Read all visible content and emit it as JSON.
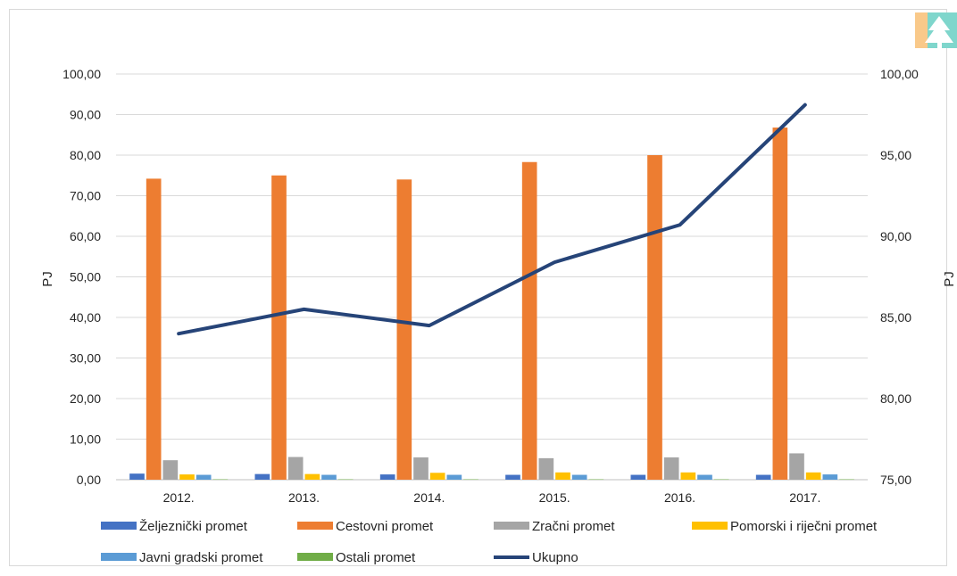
{
  "chart_data": {
    "type": "bar",
    "categories": [
      "2012.",
      "2013.",
      "2014.",
      "2015.",
      "2016.",
      "2017."
    ],
    "series": [
      {
        "name": "Željeznički promet",
        "axis": "left",
        "kind": "bar",
        "color": "#4472c4",
        "values": [
          1.5,
          1.4,
          1.3,
          1.2,
          1.2,
          1.2
        ]
      },
      {
        "name": "Cestovni promet",
        "axis": "left",
        "kind": "bar",
        "color": "#ed7d31",
        "values": [
          74.2,
          75.0,
          74.0,
          78.3,
          80.0,
          86.8
        ]
      },
      {
        "name": "Zračni promet",
        "axis": "left",
        "kind": "bar",
        "color": "#a5a5a5",
        "values": [
          4.8,
          5.6,
          5.5,
          5.3,
          5.5,
          6.5
        ]
      },
      {
        "name": "Pomorski i riječni promet",
        "axis": "left",
        "kind": "bar",
        "color": "#ffc000",
        "values": [
          1.3,
          1.4,
          1.7,
          1.8,
          1.8,
          1.8
        ]
      },
      {
        "name": "Javni gradski promet",
        "axis": "left",
        "kind": "bar",
        "color": "#5b9bd5",
        "values": [
          1.2,
          1.2,
          1.2,
          1.2,
          1.2,
          1.3
        ]
      },
      {
        "name": "Ostali promet",
        "axis": "left",
        "kind": "bar",
        "color": "#70ad47",
        "values": [
          0.1,
          0.1,
          0.1,
          0.1,
          0.1,
          0.1
        ]
      },
      {
        "name": "Ukupno",
        "axis": "right",
        "kind": "line",
        "color": "#264478",
        "values": [
          84.0,
          85.5,
          84.5,
          88.4,
          90.7,
          98.1
        ]
      }
    ],
    "ylabel": "PJ",
    "y2label": "PJ",
    "ylim": [
      0,
      100
    ],
    "y2lim": [
      75,
      100
    ],
    "yticks": [
      "0,00",
      "10,00",
      "20,00",
      "30,00",
      "40,00",
      "50,00",
      "60,00",
      "70,00",
      "80,00",
      "90,00",
      "100,00"
    ],
    "y2ticks": [
      "75,00",
      "80,00",
      "85,00",
      "90,00",
      "95,00",
      "100,00"
    ],
    "grid": true,
    "legend": "bottom"
  },
  "logo": {
    "name": "tree-logo-icon",
    "colors": [
      "#f9c98a",
      "#7fd6cc",
      "#ffffff"
    ]
  }
}
